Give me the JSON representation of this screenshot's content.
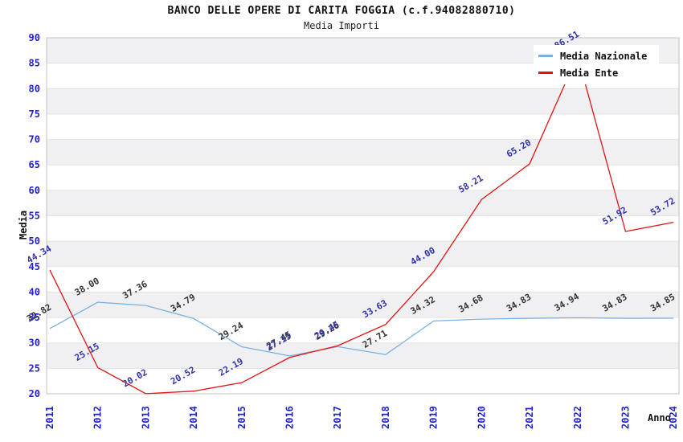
{
  "header": {
    "title": "BANCO DELLE OPERE DI CARITA FOGGIA (c.f.94082880710)",
    "subtitle": "Media Importi"
  },
  "legend": {
    "items": [
      {
        "label": "Media Nazionale",
        "color": "#79b0e2"
      },
      {
        "label": "Media Ente",
        "color": "#e11212"
      }
    ]
  },
  "axes": {
    "y_label": "Media",
    "x_label": "Anno",
    "tick_color": "#2222cc",
    "y_ticks": [
      20,
      25,
      30,
      35,
      40,
      45,
      50,
      55,
      60,
      65,
      70,
      75,
      80,
      85,
      90
    ],
    "x_ticks": [
      "2011",
      "2012",
      "2013",
      "2014",
      "2015",
      "2016",
      "2017",
      "2018",
      "2019",
      "2020",
      "2021",
      "2022",
      "2023",
      "2024"
    ]
  },
  "chart_data": {
    "type": "line",
    "title": "BANCO DELLE OPERE DI CARITA FOGGIA (c.f.94082880710)",
    "subtitle": "Media Importi",
    "xlabel": "Anno",
    "ylabel": "Media",
    "x": [
      2011,
      2012,
      2013,
      2014,
      2015,
      2016,
      2017,
      2018,
      2019,
      2020,
      2021,
      2022,
      2023,
      2024
    ],
    "ylim": [
      20,
      90
    ],
    "ytick_step": 5,
    "grid": "horizontal-bands",
    "legend_position": "top-right",
    "band_color": "#f0f0f2",
    "gridline_color": "#e3e3e3",
    "border_color": "#c0c0c0",
    "series": [
      {
        "name": "Media Nazionale",
        "color": "#79b0e2",
        "label_color": "#333333",
        "values": [
          32.82,
          38.0,
          37.36,
          34.79,
          29.24,
          27.45,
          29.26,
          27.71,
          34.32,
          34.68,
          34.83,
          34.94,
          34.83,
          34.85
        ]
      },
      {
        "name": "Media Ente",
        "color": "#e11212",
        "label_color": "#3333aa",
        "values": [
          44.34,
          25.15,
          20.02,
          20.52,
          22.19,
          27.15,
          29.45,
          33.63,
          44.0,
          58.21,
          65.2,
          86.51,
          51.92,
          53.72
        ]
      }
    ]
  }
}
